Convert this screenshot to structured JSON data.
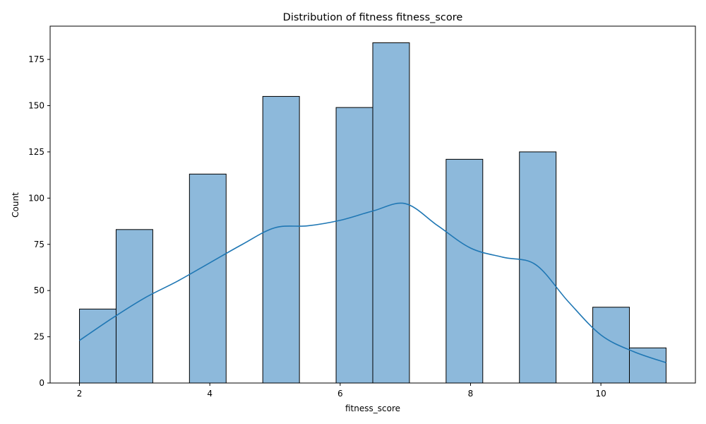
{
  "chart_data": {
    "type": "bar",
    "title": "Distribution of fitness fitness_score",
    "xlabel": "fitness_score",
    "ylabel": "Count",
    "xlim": [
      1.55,
      11.45
    ],
    "ylim": [
      0,
      193
    ],
    "xticks": [
      2,
      4,
      6,
      8,
      10
    ],
    "yticks": [
      0,
      25,
      50,
      75,
      100,
      125,
      150,
      175
    ],
    "bin_width": 0.5625,
    "bins": [
      {
        "start": 2.0,
        "count": 40
      },
      {
        "start": 2.5625,
        "count": 83
      },
      {
        "start": 3.125,
        "count": 0
      },
      {
        "start": 3.6875,
        "count": 113
      },
      {
        "start": 4.25,
        "count": 0
      },
      {
        "start": 4.8125,
        "count": 155
      },
      {
        "start": 5.375,
        "count": 0
      },
      {
        "start": 5.9375,
        "count": 149
      },
      {
        "start": 6.5,
        "count": 184
      },
      {
        "start": 7.0625,
        "count": 0
      },
      {
        "start": 7.625,
        "count": 121
      },
      {
        "start": 8.1875,
        "count": 0
      },
      {
        "start": 8.75,
        "count": 125
      },
      {
        "start": 9.3125,
        "count": 0
      },
      {
        "start": 9.875,
        "count": 41
      },
      {
        "start": 10.4375,
        "count": 19
      }
    ],
    "kde": {
      "x": [
        2.0,
        2.5,
        3.0,
        3.5,
        4.0,
        4.5,
        5.0,
        5.5,
        6.0,
        6.5,
        7.0,
        7.5,
        8.0,
        8.5,
        9.0,
        9.5,
        10.0,
        10.5,
        11.0
      ],
      "y": [
        23,
        35,
        46,
        55,
        65,
        75,
        84,
        85,
        88,
        93,
        97,
        85,
        73,
        68,
        64,
        44,
        26,
        17,
        11
      ]
    },
    "colors": {
      "bar_fill": "#8db9db",
      "bar_edge": "#000000",
      "kde_line": "#1f77b4"
    },
    "grid": false,
    "legend": "none"
  }
}
